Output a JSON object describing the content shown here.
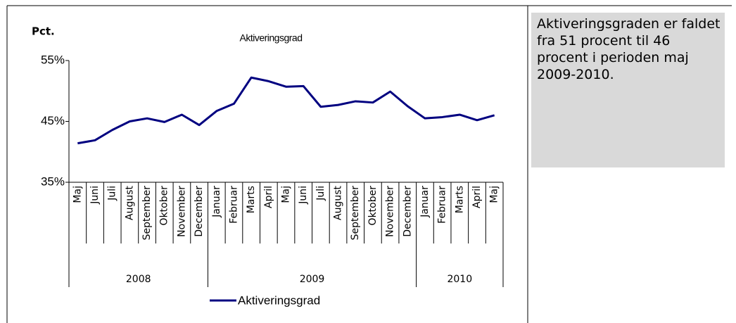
{
  "chart_data": {
    "type": "line",
    "title": "Aktiveringsgrad",
    "y_label": "Pct.",
    "categories": [
      "Maj",
      "Juni",
      "Juli",
      "August",
      "September",
      "Oktober",
      "November",
      "December",
      "Januar",
      "Februar",
      "Marts",
      "April",
      "Maj",
      "Juni",
      "Juli",
      "August",
      "September",
      "Oktober",
      "November",
      "December",
      "Januar",
      "Februar",
      "Marts",
      "April",
      "Maj"
    ],
    "category_groups": [
      {
        "label": "2008",
        "count": 8
      },
      {
        "label": "2009",
        "count": 12
      },
      {
        "label": "2010",
        "count": 5
      }
    ],
    "series": [
      {
        "name": "Aktiveringsgrad",
        "color": "#000080",
        "values": [
          41.4,
          41.9,
          43.6,
          45.0,
          45.5,
          44.9,
          46.1,
          44.4,
          46.7,
          47.9,
          52.2,
          51.6,
          50.7,
          50.8,
          47.4,
          47.7,
          48.3,
          48.1,
          49.9,
          47.5,
          45.5,
          45.7,
          46.1,
          45.2,
          46.0
        ]
      }
    ],
    "ylim": [
      35,
      55
    ],
    "yticks": [
      {
        "value": 35,
        "label": "35%"
      },
      {
        "value": 45,
        "label": "45%"
      },
      {
        "value": 55,
        "label": "55%"
      }
    ],
    "grid": false,
    "legend": "bottom"
  },
  "textbox": {
    "text": "Aktiveringsgraden er faldet fra 51 procent til 46 procent i perioden maj 2009-2010."
  }
}
